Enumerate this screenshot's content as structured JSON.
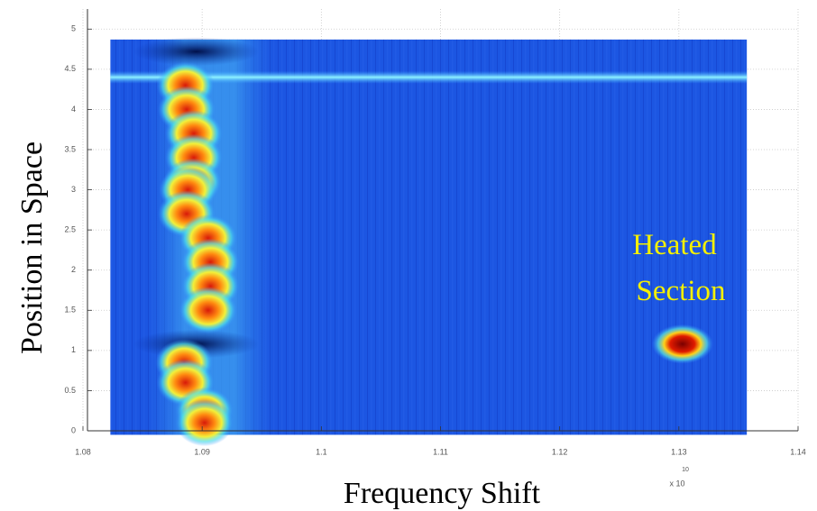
{
  "chart_data": {
    "type": "heatmap",
    "xlabel": "Frequency Shift",
    "ylabel": "Position in Space",
    "x_multiplier": "x 10",
    "x_multiplier_exponent": "10",
    "annotation": [
      "Heated",
      "Section"
    ],
    "xlim": [
      1.08,
      1.14
    ],
    "ylim": [
      0,
      5.25
    ],
    "xticks": [
      1.08,
      1.09,
      1.1,
      1.11,
      1.12,
      1.13,
      1.14
    ],
    "yticks": [
      0,
      0.5,
      1,
      1.5,
      2,
      2.5,
      3,
      3.5,
      4,
      4.5,
      5
    ],
    "grid": true,
    "xdata_range": [
      1.0823,
      1.1357
    ],
    "ydata_range": [
      -0.05,
      4.87
    ],
    "bright_line_y": 4.4,
    "dark_spots": {
      "x": [
        1.0895,
        1.0895
      ],
      "y": [
        4.72,
        1.08
      ]
    },
    "peaks": {
      "x": [
        1.0886,
        1.0887,
        1.0893,
        1.0893,
        1.0892,
        1.0888,
        1.0887,
        1.0905,
        1.0907,
        1.0907,
        1.0905,
        1.0885,
        1.0886,
        1.0902,
        1.0902,
        1.1303
      ],
      "y": [
        4.3,
        4.0,
        3.7,
        3.4,
        3.1,
        3.0,
        2.7,
        2.4,
        2.1,
        1.8,
        1.5,
        0.85,
        0.6,
        0.25,
        0.1,
        1.08
      ]
    }
  }
}
